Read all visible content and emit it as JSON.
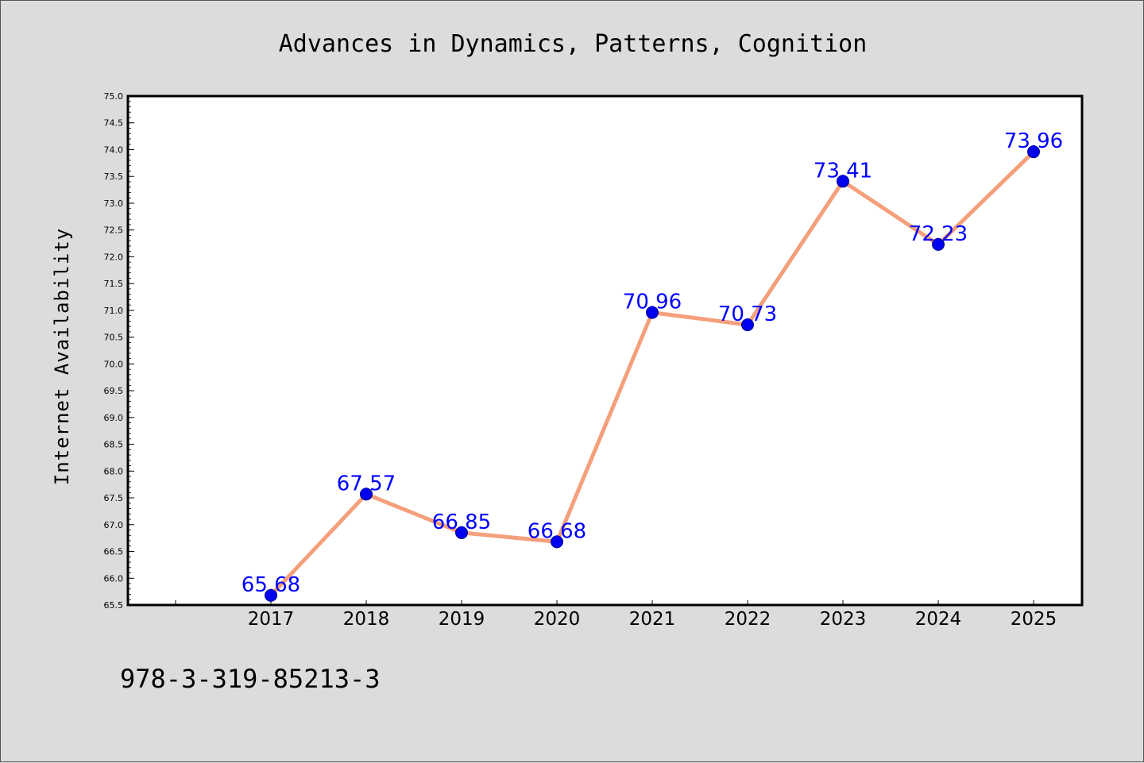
{
  "isbn": "978-3-319-85213-3",
  "chart_data": {
    "type": "line",
    "title": "Advances in Dynamics, Patterns, Cognition",
    "xlabel": "",
    "ylabel": "Internet Availability",
    "categories": [
      "2017",
      "2018",
      "2019",
      "2020",
      "2021",
      "2022",
      "2023",
      "2024",
      "2025"
    ],
    "series": [
      {
        "values": [
          65.68,
          67.57,
          66.85,
          66.68,
          70.96,
          70.73,
          73.41,
          72.23,
          73.96
        ],
        "data_labels": [
          "65.68",
          "67.57",
          "66.85",
          "66.68",
          "70.96",
          "70.73",
          "73.41",
          "72.23",
          "73.96"
        ]
      }
    ],
    "ylim": [
      65.5,
      75.0
    ],
    "yticks": [
      "65.5",
      "66.0",
      "66.5",
      "67.0",
      "67.5",
      "68.0",
      "68.5",
      "69.0",
      "69.5",
      "70.0",
      "70.5",
      "71.0",
      "71.5",
      "72.0",
      "72.5",
      "73.0",
      "73.5",
      "74.0",
      "74.5",
      "75.0"
    ],
    "grid": false,
    "legend": "none",
    "colors": {
      "line": "#f4a07c",
      "marker": "#0000ee",
      "label": "#0000ff",
      "plot_background": "#ffffff",
      "page_background": "#dcdcdc"
    }
  }
}
